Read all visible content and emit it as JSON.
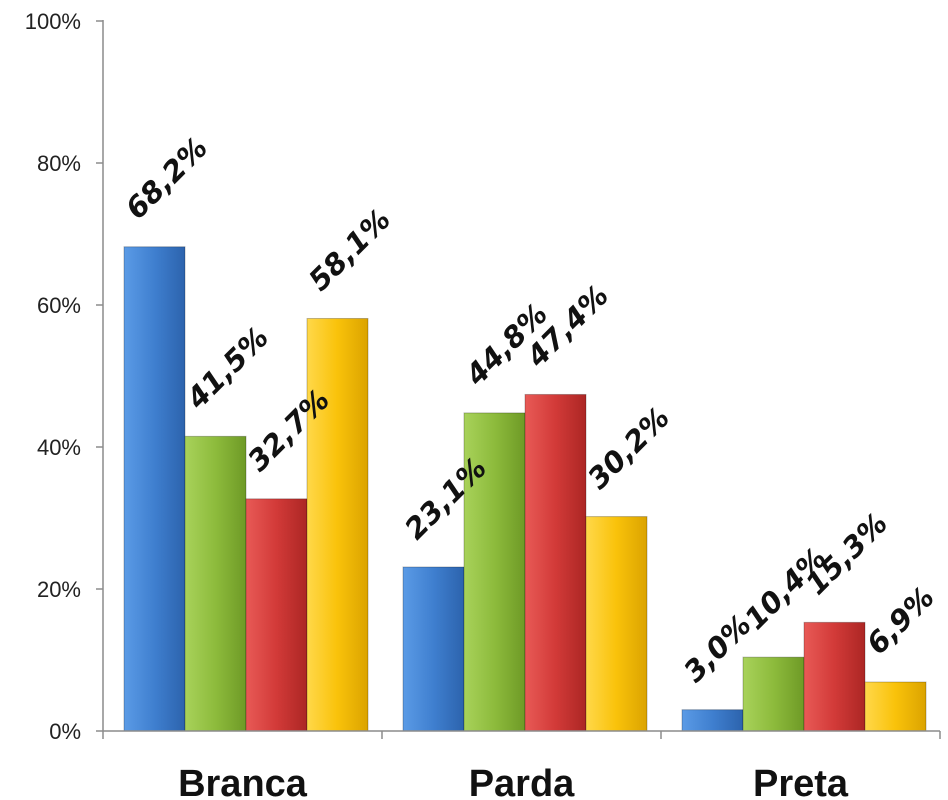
{
  "chart_data": {
    "type": "bar",
    "title": "",
    "xlabel": "",
    "ylabel": "",
    "categories": [
      "Branca",
      "Parda",
      "Preta"
    ],
    "ylim": [
      0,
      100
    ],
    "y_ticks": [
      0,
      20,
      40,
      60,
      80,
      100
    ],
    "y_tick_labels": [
      "0%",
      "20%",
      "40%",
      "60%",
      "80%",
      "100%"
    ],
    "grid": false,
    "legend": "none",
    "series": [
      {
        "color": "#3f7fcf",
        "values": [
          68.2,
          23.1,
          3.0
        ],
        "labels": [
          "68,2%",
          "23,1%",
          "3,0%"
        ]
      },
      {
        "color": "#8dbb3c",
        "values": [
          41.5,
          44.8,
          10.4
        ],
        "labels": [
          "41,5%",
          "44,8%",
          "10,4%"
        ]
      },
      {
        "color": "#d23a38",
        "values": [
          32.7,
          47.4,
          15.3
        ],
        "labels": [
          "32,7%",
          "47,4%",
          "15,3%"
        ]
      },
      {
        "color": "#f9c20a",
        "values": [
          58.1,
          30.2,
          6.9
        ],
        "labels": [
          "58,1%",
          "30,2%",
          "6,9%"
        ]
      }
    ]
  }
}
